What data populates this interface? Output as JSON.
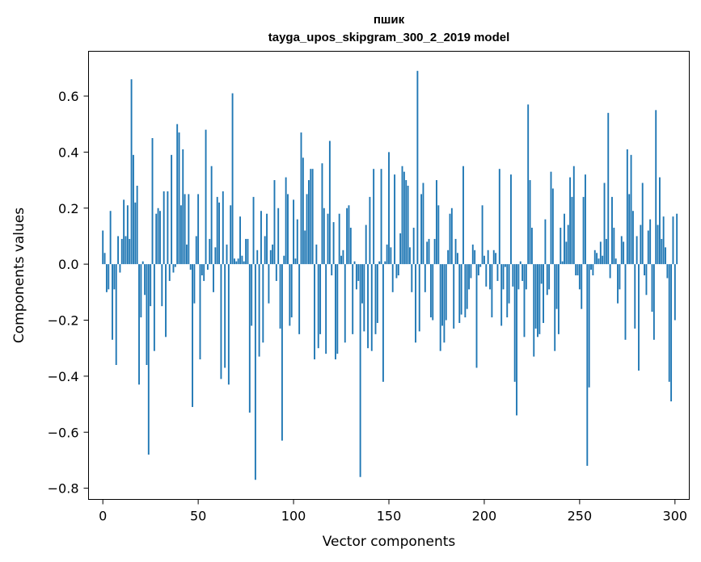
{
  "chart_data": {
    "type": "bar",
    "title": "пшик",
    "subtitle": "tayga_upos_skipgram_300_2_2019 model",
    "xlabel": "Vector components",
    "ylabel": "Components values",
    "xlim": [
      -7.5,
      307.5
    ],
    "ylim": [
      -0.84,
      0.76
    ],
    "xticks": [
      0,
      50,
      100,
      150,
      200,
      250,
      300
    ],
    "yticks": [
      -0.8,
      -0.6,
      -0.4,
      -0.2,
      0.0,
      0.2,
      0.4,
      0.6
    ],
    "ytick_labels": [
      "−0.8",
      "−0.6",
      "−0.4",
      "−0.2",
      "0.0",
      "0.2",
      "0.4",
      "0.6"
    ],
    "grid": false,
    "bar_color": "#1f77b4",
    "x": "indices 0–299",
    "values": [
      0.12,
      0.04,
      -0.1,
      -0.09,
      0.19,
      -0.27,
      -0.09,
      -0.36,
      0.1,
      -0.03,
      0.09,
      0.23,
      0.1,
      0.21,
      0.09,
      0.66,
      0.39,
      0.22,
      0.28,
      -0.43,
      -0.19,
      0.01,
      -0.11,
      -0.36,
      -0.68,
      -0.15,
      0.45,
      -0.31,
      0.18,
      0.2,
      0.19,
      -0.15,
      0.26,
      -0.26,
      0.26,
      -0.06,
      0.39,
      -0.03,
      -0.01,
      0.5,
      0.47,
      0.21,
      0.41,
      0.25,
      0.07,
      0.25,
      -0.02,
      -0.51,
      -0.14,
      0.1,
      0.25,
      -0.34,
      -0.04,
      -0.06,
      0.48,
      -0.02,
      0.09,
      0.35,
      -0.1,
      0.06,
      0.24,
      0.22,
      -0.41,
      0.26,
      -0.37,
      0.07,
      -0.43,
      0.21,
      0.61,
      0.02,
      0.01,
      0.02,
      0.17,
      0.03,
      0.01,
      0.09,
      0.09,
      -0.53,
      -0.22,
      0.24,
      -0.77,
      0.05,
      -0.33,
      0.19,
      -0.28,
      0.1,
      0.18,
      -0.14,
      0.05,
      0.07,
      0.3,
      -0.06,
      0.2,
      -0.23,
      -0.63,
      0.03,
      0.31,
      0.25,
      -0.22,
      -0.19,
      0.23,
      0.02,
      0.16,
      -0.25,
      0.47,
      0.38,
      0.12,
      0.25,
      0.3,
      0.34,
      0.34,
      -0.34,
      0.07,
      -0.3,
      -0.25,
      0.36,
      0.2,
      -0.32,
      0.18,
      0.44,
      -0.04,
      0.15,
      -0.34,
      -0.32,
      0.18,
      0.03,
      0.05,
      -0.28,
      0.2,
      0.21,
      0.13,
      -0.25,
      0.01,
      -0.09,
      -0.06,
      -0.76,
      -0.14,
      -0.24,
      0.14,
      -0.3,
      0.24,
      -0.31,
      0.34,
      -0.25,
      -0.21,
      0.01,
      0.34,
      -0.42,
      0.01,
      0.07,
      0.4,
      0.06,
      -0.1,
      0.32,
      -0.05,
      -0.04,
      0.11,
      0.35,
      0.33,
      0.3,
      0.28,
      0.06,
      -0.1,
      0.13,
      -0.28,
      0.69,
      -0.24,
      0.25,
      0.29,
      -0.1,
      0.08,
      0.09,
      -0.19,
      -0.2,
      0.09,
      0.3,
      0.21,
      -0.31,
      -0.22,
      -0.28,
      -0.2,
      0.05,
      0.18,
      0.2,
      -0.23,
      0.09,
      0.04,
      -0.21,
      -0.18,
      0.35,
      -0.19,
      -0.16,
      -0.09,
      -0.05,
      0.07,
      0.05,
      -0.37,
      -0.04,
      -0.01,
      0.21,
      0.03,
      -0.08,
      0.05,
      -0.09,
      -0.19,
      0.05,
      0.04,
      -0.06,
      0.34,
      -0.22,
      -0.09,
      -0.01,
      -0.19,
      -0.14,
      0.32,
      -0.08,
      -0.42,
      -0.54,
      -0.09,
      0.01,
      -0.06,
      -0.26,
      -0.09,
      0.57,
      0.3,
      0.13,
      -0.33,
      -0.23,
      -0.26,
      -0.25,
      -0.07,
      -0.21,
      0.16,
      -0.11,
      -0.09,
      0.33,
      0.27,
      -0.31,
      -0.16,
      -0.25,
      0.13,
      0.01,
      0.18,
      0.08,
      0.14,
      0.31,
      0.24,
      0.35,
      -0.04,
      -0.04,
      -0.09,
      -0.16,
      0.24,
      0.32,
      -0.72,
      -0.44,
      -0.02,
      -0.04,
      0.05,
      0.04,
      0.02,
      0.08,
      0.03,
      0.29,
      0.09,
      0.54,
      -0.05,
      0.24,
      0.13,
      0.02,
      -0.14,
      -0.09,
      0.1,
      0.08,
      -0.27,
      0.41,
      0.25,
      0.39,
      0.19,
      -0.23,
      0.1,
      -0.38,
      0.14,
      0.29,
      -0.04,
      -0.11,
      0.12,
      0.16,
      -0.17,
      -0.27,
      0.55,
      0.14,
      0.31,
      0.09,
      0.17,
      0.06,
      -0.05,
      -0.42,
      -0.49,
      0.17,
      -0.2,
      0.18
    ]
  }
}
